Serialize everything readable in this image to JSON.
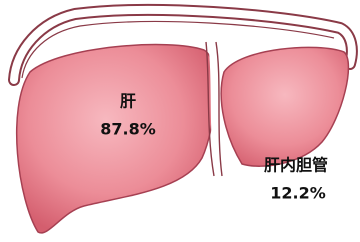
{
  "regions": [
    {
      "label": "肝",
      "share": "87.8%"
    },
    {
      "label": "肝内胆管",
      "share": "12.2%"
    }
  ]
}
